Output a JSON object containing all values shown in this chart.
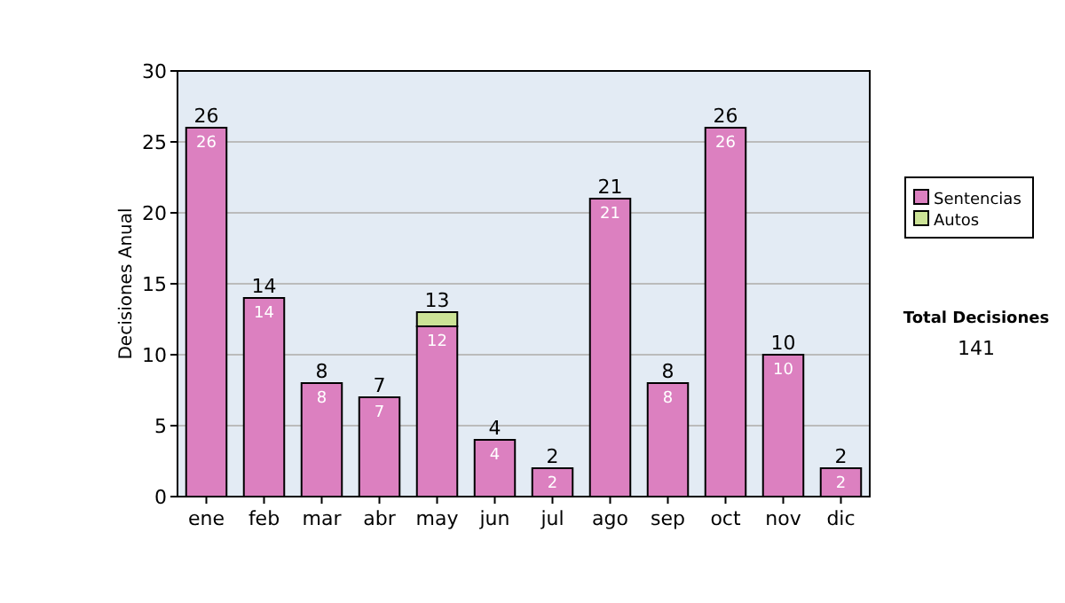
{
  "chart_data": {
    "type": "bar",
    "ylabel": "Decisiones Anual",
    "categories": [
      "ene",
      "feb",
      "mar",
      "abr",
      "may",
      "jun",
      "jul",
      "ago",
      "sep",
      "oct",
      "nov",
      "dic"
    ],
    "series": [
      {
        "name": "Sentencias",
        "color": "#dc80c0",
        "values": [
          26,
          14,
          8,
          7,
          12,
          4,
          2,
          21,
          8,
          26,
          10,
          2
        ],
        "value_labels": [
          "26",
          "14",
          "8",
          "7",
          "12",
          "4",
          "2",
          "21",
          "8",
          "26",
          "10",
          "2"
        ]
      },
      {
        "name": "Autos",
        "color": "#cce396",
        "values": [
          0,
          0,
          0,
          0,
          1,
          0,
          0,
          0,
          0,
          0,
          0,
          0
        ]
      }
    ],
    "stacked": true,
    "totals": [
      "26",
      "14",
      "8",
      "7",
      "13",
      "4",
      "2",
      "21",
      "8",
      "26",
      "10",
      "2"
    ],
    "ylim": [
      0,
      30
    ],
    "yticks": [
      0,
      5,
      10,
      15,
      20,
      25,
      30
    ],
    "grid": "y",
    "legend": "right",
    "annotations": [
      "Total Decisiones",
      "141"
    ]
  }
}
